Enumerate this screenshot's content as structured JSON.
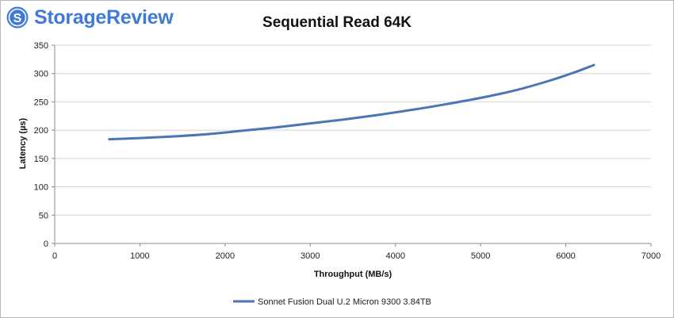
{
  "brand": {
    "name": "StorageReview",
    "logo_icon": "storagereview-badge-icon",
    "color": "#3f7ad6"
  },
  "chart_data": {
    "type": "line",
    "title": "Sequential Read 64K",
    "xlabel": "Throughput (MB/s)",
    "ylabel": "Latency (µs)",
    "xlim": [
      0,
      7000
    ],
    "ylim": [
      0,
      350
    ],
    "xticks": [
      0,
      1000,
      2000,
      3000,
      4000,
      5000,
      6000,
      7000
    ],
    "yticks": [
      0,
      50,
      100,
      150,
      200,
      250,
      300,
      350
    ],
    "grid": true,
    "legend_position": "bottom",
    "series": [
      {
        "name": "Sonnet Fusion Dual U.2 Micron 9300 3.84TB",
        "color": "#4a76b8",
        "x": [
          640,
          1000,
          1400,
          1800,
          2200,
          2600,
          3000,
          3400,
          3800,
          4200,
          4600,
          5000,
          5400,
          5800,
          6100,
          6330
        ],
        "y": [
          184,
          186,
          189,
          193,
          199,
          205,
          212,
          219,
          227,
          236,
          246,
          257,
          270,
          287,
          302,
          315
        ]
      }
    ]
  }
}
